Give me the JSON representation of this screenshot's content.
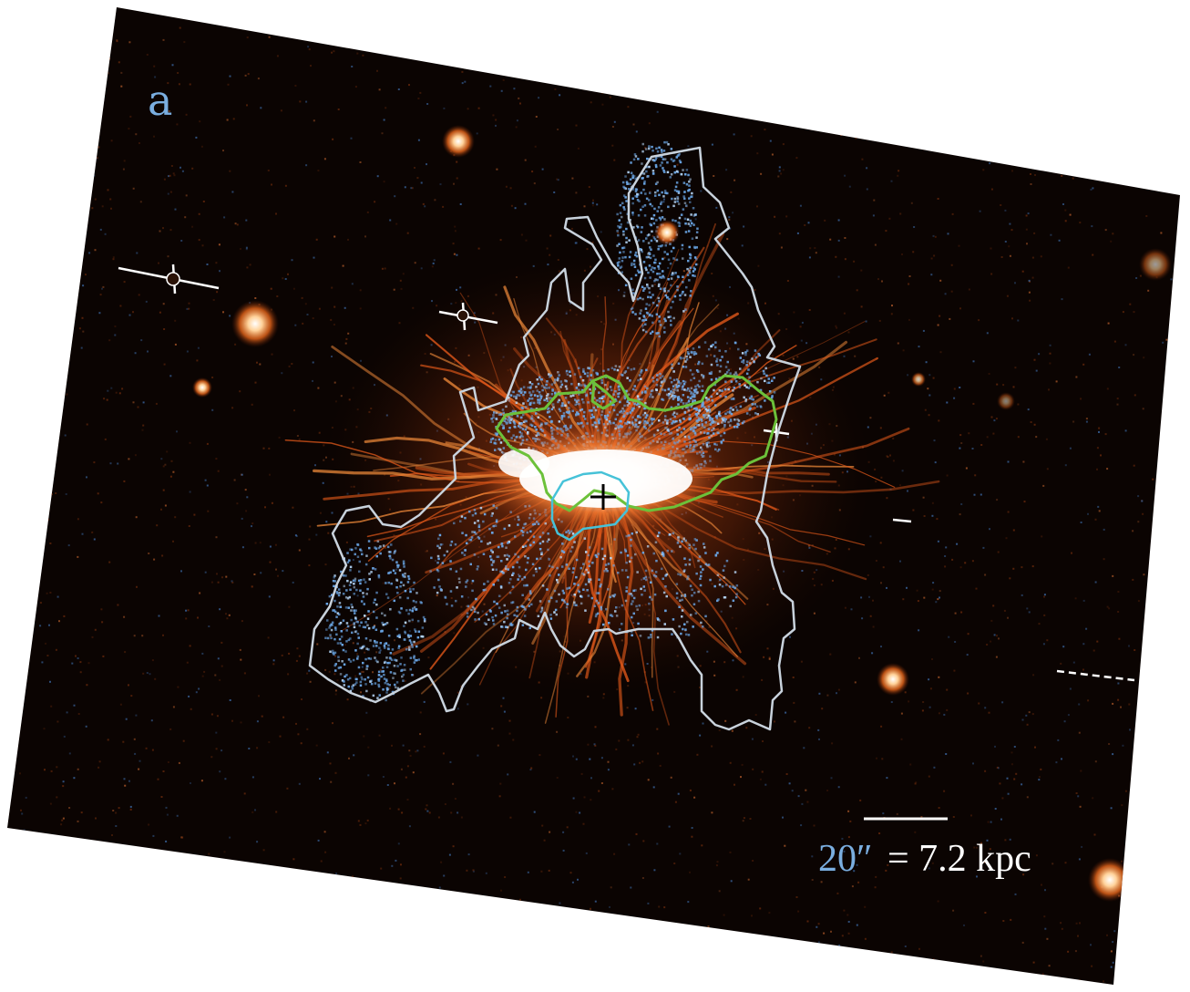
{
  "panel": {
    "label": "a"
  },
  "scale_bar": {
    "angle_text": "20″",
    "distance_text": "= 7.2 kpc"
  },
  "colors": {
    "background": "#0b0402",
    "emission_filaments": "#e0581a",
    "core": "#ffffff",
    "blue_points": "#6aa6e6",
    "outer_contour": "#c8d2dc",
    "green_contour": "#6cc13a",
    "cyan_contour": "#46c2d8",
    "label_blue": "#7aaee0",
    "label_white": "#ffffff"
  }
}
